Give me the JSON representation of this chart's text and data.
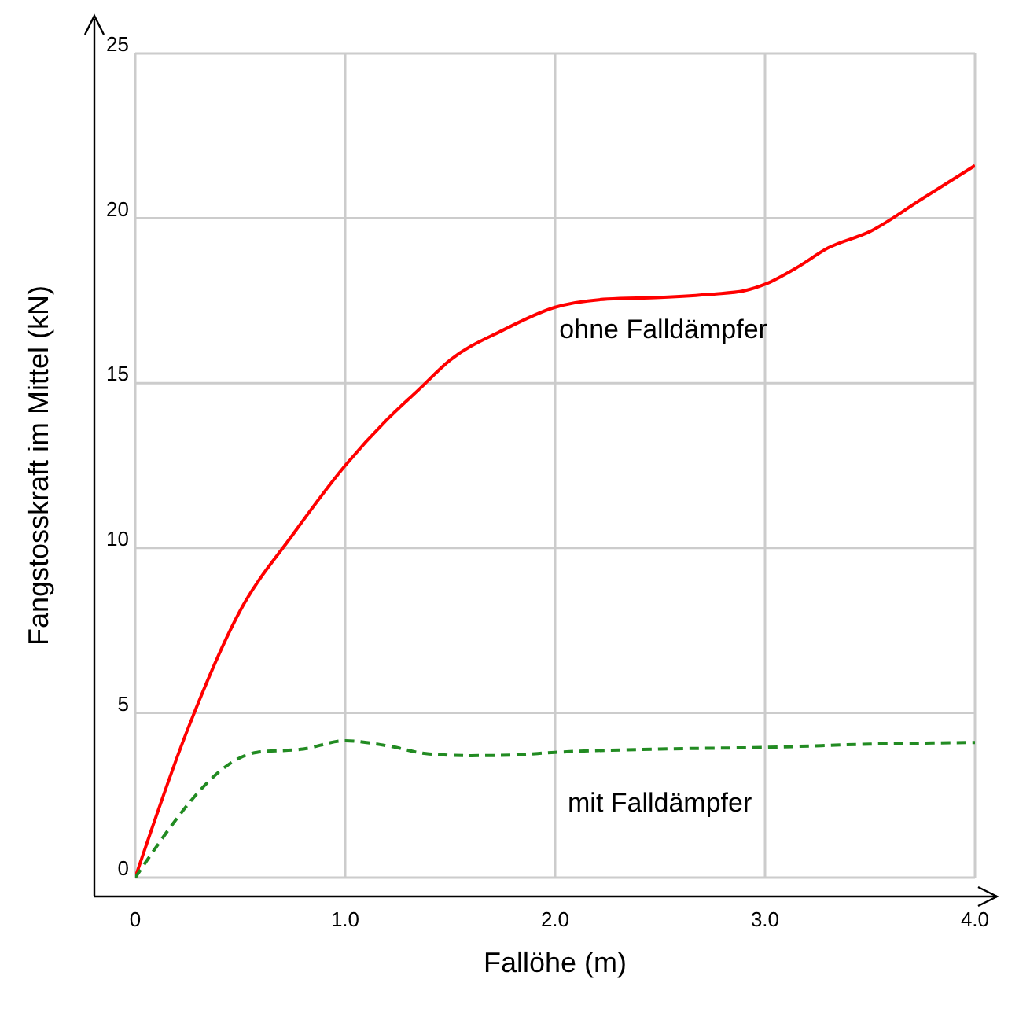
{
  "chart_data": {
    "type": "line",
    "xlabel": "Fallöhe (m)",
    "ylabel": "Fangstosskraft im Mittel (kN)",
    "xlim": [
      0,
      4
    ],
    "xticks": [
      0,
      {
        "value": 1,
        "label": "1.0"
      },
      {
        "value": 2,
        "label": "2.0"
      },
      {
        "value": 3,
        "label": "3.0"
      },
      {
        "value": 4,
        "label": "4.0"
      }
    ],
    "ylim": [
      0,
      25
    ],
    "yticks": [
      0,
      5,
      10,
      15,
      20,
      25
    ],
    "grid": true,
    "marker": "none",
    "series": [
      {
        "color": "#ff0000",
        "line_style": "solid",
        "x": [
          0,
          0.25,
          0.5,
          0.75,
          1.0,
          1.2,
          1.35,
          1.5,
          1.75,
          2.0,
          2.25,
          2.5,
          2.75,
          2.9,
          3.0,
          3.15,
          3.3,
          3.5,
          3.75,
          4.0
        ],
        "values": [
          0,
          4.5,
          8.1,
          10.4,
          12.5,
          13.9,
          14.8,
          15.7,
          16.6,
          17.3,
          17.55,
          17.6,
          17.7,
          17.8,
          18.0,
          18.5,
          19.1,
          19.6,
          20.6,
          21.6
        ]
      },
      {
        "color": "#228b22",
        "line_style": "dashed",
        "x": [
          0,
          0.58,
          0.8,
          1.0,
          1.2,
          1.4,
          1.6,
          1.8,
          2.0,
          2.5,
          3.0,
          3.5,
          4.0
        ],
        "values": [
          0,
          3.8,
          3.9,
          4.15,
          4.0,
          3.75,
          3.7,
          3.72,
          3.8,
          3.9,
          3.95,
          4.05,
          4.1
        ]
      }
    ],
    "annotations": [
      "ohne Falldämpfer",
      "mit Falldämpfer"
    ]
  }
}
